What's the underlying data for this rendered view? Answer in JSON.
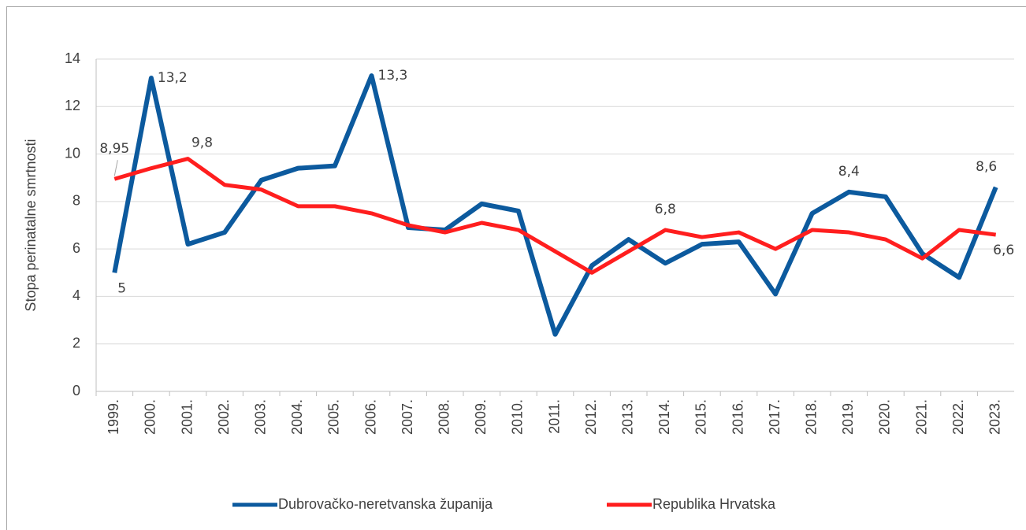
{
  "chart_data": {
    "type": "line",
    "y_label": "Stopa perinatalne smrtnosti",
    "categories": [
      "1999.",
      "2000.",
      "2001.",
      "2002.",
      "2003.",
      "2004.",
      "2005.",
      "2006.",
      "2007.",
      "2008.",
      "2009.",
      "2010.",
      "2011.",
      "2012.",
      "2013.",
      "2014.",
      "2015.",
      "2016.",
      "2017.",
      "2018.",
      "2019.",
      "2020.",
      "2021.",
      "2022.",
      "2023."
    ],
    "series": [
      {
        "name": "Dubrovačko-neretvanska županija",
        "color": "#0c5a9e",
        "values": [
          5,
          13.2,
          6.2,
          6.7,
          8.9,
          9.4,
          9.5,
          13.3,
          6.9,
          6.8,
          7.9,
          7.6,
          2.4,
          5.3,
          6.4,
          5.4,
          6.2,
          6.3,
          4.1,
          7.5,
          8.4,
          8.2,
          5.8,
          4.8,
          8.6
        ],
        "value_labels": [
          "5",
          "13,2",
          null,
          null,
          null,
          null,
          null,
          "13,3",
          null,
          null,
          null,
          null,
          null,
          null,
          null,
          null,
          null,
          null,
          null,
          null,
          "8,4",
          null,
          null,
          null,
          "8,6"
        ]
      },
      {
        "name": "Republika Hrvatska",
        "color": "#ff1e1e",
        "values": [
          8.95,
          9.4,
          9.8,
          8.7,
          8.5,
          7.8,
          7.8,
          7.5,
          7.0,
          6.7,
          7.1,
          6.8,
          5.9,
          5.0,
          5.9,
          6.8,
          6.5,
          6.7,
          6.0,
          6.8,
          6.7,
          6.4,
          5.6,
          6.8,
          6.6
        ],
        "value_labels": [
          "8,95",
          null,
          "9,8",
          null,
          null,
          null,
          null,
          null,
          null,
          null,
          null,
          null,
          null,
          null,
          null,
          "6,8",
          null,
          null,
          null,
          null,
          null,
          null,
          null,
          null,
          "6,6"
        ]
      }
    ],
    "ylim": [
      0,
      14
    ],
    "yticks": [
      0,
      2,
      4,
      6,
      8,
      10,
      12,
      14
    ],
    "grid": true,
    "legend": "bottom"
  }
}
